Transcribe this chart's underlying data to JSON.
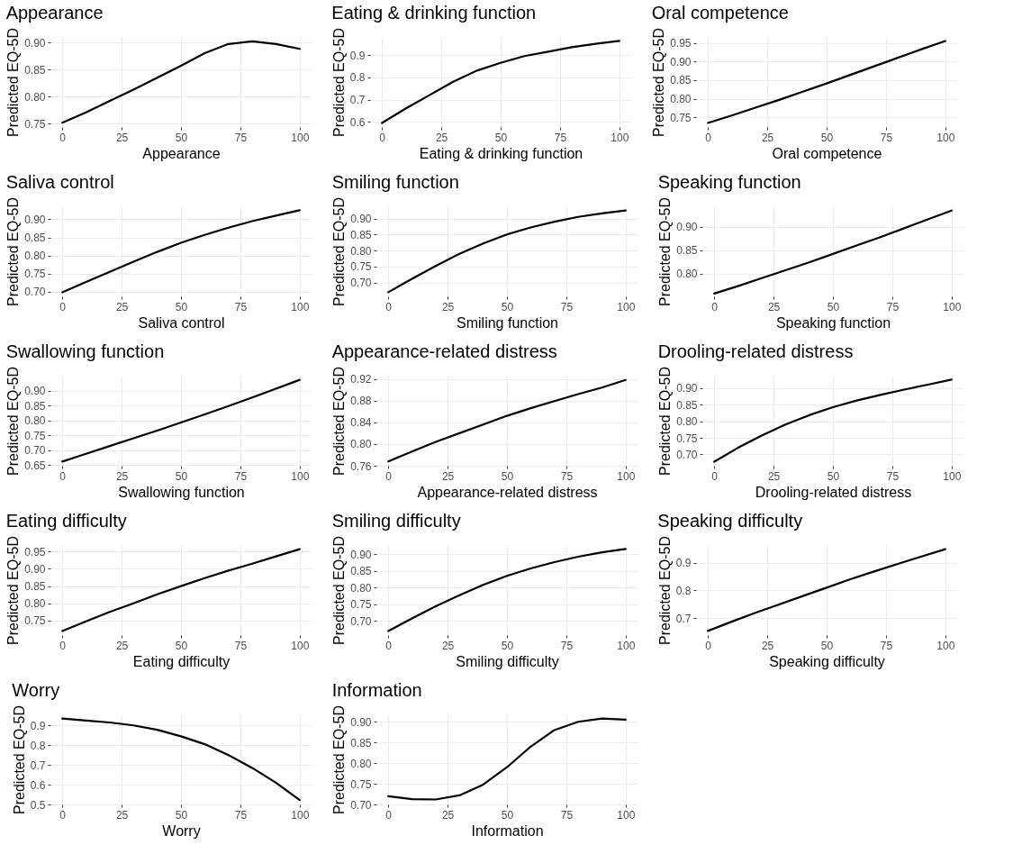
{
  "chart_data": [
    {
      "type": "line",
      "title": "Appearance",
      "xlabel": "Appearance",
      "ylabel": "Predicted EQ-5D",
      "x": [
        0,
        10,
        20,
        30,
        40,
        50,
        60,
        70,
        80,
        90,
        100
      ],
      "series": [
        {
          "color": "#000000",
          "values": [
            0.752,
            0.771,
            0.792,
            0.813,
            0.835,
            0.857,
            0.88,
            0.897,
            0.902,
            0.897,
            0.888
          ]
        }
      ],
      "xlim": [
        -5,
        105
      ],
      "xticks": [
        0,
        25,
        50,
        75,
        100
      ],
      "ylim": [
        0.744,
        0.91
      ],
      "yticks": [
        {
          "value": 0.75,
          "label": "0.75"
        },
        {
          "value": 0.8,
          "label": "0.80"
        },
        {
          "value": 0.85,
          "label": "0.85"
        },
        {
          "value": 0.9,
          "label": "0.90"
        }
      ],
      "grid": true,
      "legend": false
    },
    {
      "type": "line",
      "title": "Eating & drinking function",
      "xlabel": "Eating & drinking function",
      "ylabel": "Predicted EQ-5D",
      "x": [
        0,
        10,
        20,
        30,
        40,
        50,
        60,
        70,
        80,
        90,
        100
      ],
      "series": [
        {
          "color": "#000000",
          "values": [
            0.595,
            0.66,
            0.72,
            0.78,
            0.83,
            0.865,
            0.895,
            0.915,
            0.935,
            0.95,
            0.963
          ]
        }
      ],
      "xlim": [
        -5,
        105
      ],
      "xticks": [
        0,
        25,
        50,
        75,
        100
      ],
      "ylim": [
        0.577,
        0.981
      ],
      "yticks": [
        0.6,
        0.7,
        0.8,
        0.9
      ],
      "grid": true,
      "legend": false
    },
    {
      "type": "line",
      "title": "Oral competence",
      "xlabel": "Oral competence",
      "ylabel": "Predicted EQ-5D",
      "x": [
        0,
        10,
        20,
        30,
        40,
        50,
        60,
        70,
        80,
        90,
        100
      ],
      "series": [
        {
          "color": "#000000",
          "values": [
            0.735,
            0.755,
            0.776,
            0.797,
            0.819,
            0.841,
            0.864,
            0.887,
            0.91,
            0.933,
            0.955
          ]
        }
      ],
      "xlim": [
        -5,
        105
      ],
      "xticks": [
        0,
        25,
        50,
        75,
        100
      ],
      "ylim": [
        0.724,
        0.966
      ],
      "yticks": [
        {
          "value": 0.75,
          "label": "0.75"
        },
        {
          "value": 0.8,
          "label": "0.80"
        },
        {
          "value": 0.85,
          "label": "0.85"
        },
        {
          "value": 0.9,
          "label": "0.90"
        },
        {
          "value": 0.95,
          "label": "0.95"
        }
      ],
      "grid": true,
      "legend": false
    },
    {
      "type": "line",
      "title": "Saliva control",
      "xlabel": "Saliva control",
      "ylabel": "Predicted EQ-5D",
      "x": [
        0,
        10,
        20,
        30,
        40,
        50,
        60,
        70,
        80,
        90,
        100
      ],
      "series": [
        {
          "color": "#000000",
          "values": [
            0.698,
            0.727,
            0.755,
            0.783,
            0.81,
            0.835,
            0.857,
            0.877,
            0.895,
            0.91,
            0.925
          ]
        }
      ],
      "xlim": [
        -5,
        105
      ],
      "xticks": [
        0,
        25,
        50,
        75,
        100
      ],
      "ylim": [
        0.687,
        0.936
      ],
      "yticks": [
        {
          "value": 0.7,
          "label": "0.70"
        },
        {
          "value": 0.75,
          "label": "0.75"
        },
        {
          "value": 0.8,
          "label": "0.80"
        },
        {
          "value": 0.85,
          "label": "0.85"
        },
        {
          "value": 0.9,
          "label": "0.90"
        }
      ],
      "grid": true,
      "legend": false
    },
    {
      "type": "line",
      "title": "Smiling function",
      "xlabel": "Smiling function",
      "ylabel": "Predicted EQ-5D",
      "x": [
        0,
        10,
        20,
        30,
        40,
        50,
        60,
        70,
        80,
        90,
        100
      ],
      "series": [
        {
          "color": "#000000",
          "values": [
            0.67,
            0.712,
            0.752,
            0.79,
            0.822,
            0.85,
            0.872,
            0.89,
            0.905,
            0.916,
            0.925
          ]
        }
      ],
      "xlim": [
        -5,
        105
      ],
      "xticks": [
        0,
        25,
        50,
        75,
        100
      ],
      "ylim": [
        0.657,
        0.938
      ],
      "yticks": [
        {
          "value": 0.7,
          "label": "0.70"
        },
        {
          "value": 0.75,
          "label": "0.75"
        },
        {
          "value": 0.8,
          "label": "0.80"
        },
        {
          "value": 0.85,
          "label": "0.85"
        },
        {
          "value": 0.9,
          "label": "0.90"
        }
      ],
      "grid": true,
      "legend": false
    },
    {
      "type": "line",
      "title": "Speaking function",
      "xlabel": "Speaking function",
      "ylabel": "Predicted EQ-5D",
      "x": [
        0,
        10,
        20,
        30,
        40,
        50,
        60,
        70,
        80,
        90,
        100
      ],
      "series": [
        {
          "color": "#000000",
          "values": [
            0.757,
            0.773,
            0.79,
            0.807,
            0.824,
            0.842,
            0.86,
            0.878,
            0.897,
            0.916,
            0.935
          ]
        }
      ],
      "xlim": [
        -5,
        105
      ],
      "xticks": [
        0,
        25,
        50,
        75,
        100
      ],
      "ylim": [
        0.751,
        0.944
      ],
      "yticks": [
        {
          "value": 0.8,
          "label": "0.80"
        },
        {
          "value": 0.85,
          "label": "0.85"
        },
        {
          "value": 0.9,
          "label": "0.90"
        }
      ],
      "grid": true,
      "legend": false
    },
    {
      "type": "line",
      "title": "Swallowing function",
      "xlabel": "Swallowing function",
      "ylabel": "Predicted EQ-5D",
      "x": [
        0,
        10,
        20,
        30,
        40,
        50,
        60,
        70,
        80,
        90,
        100
      ],
      "series": [
        {
          "color": "#000000",
          "values": [
            0.662,
            0.688,
            0.714,
            0.74,
            0.766,
            0.793,
            0.82,
            0.848,
            0.877,
            0.906,
            0.936
          ]
        }
      ],
      "xlim": [
        -5,
        105
      ],
      "xticks": [
        0,
        25,
        50,
        75,
        100
      ],
      "ylim": [
        0.648,
        0.95
      ],
      "yticks": [
        {
          "value": 0.65,
          "label": "0.65"
        },
        {
          "value": 0.7,
          "label": "0.70"
        },
        {
          "value": 0.75,
          "label": "0.75"
        },
        {
          "value": 0.8,
          "label": "0.80"
        },
        {
          "value": 0.85,
          "label": "0.85"
        },
        {
          "value": 0.9,
          "label": "0.90"
        }
      ],
      "grid": true,
      "legend": false
    },
    {
      "type": "line",
      "title": "Appearance-related distress",
      "xlabel": "Appearance-related distress",
      "ylabel": "Predicted EQ-5D",
      "x": [
        0,
        10,
        20,
        30,
        40,
        50,
        60,
        70,
        80,
        90,
        100
      ],
      "series": [
        {
          "color": "#000000",
          "values": [
            0.768,
            0.786,
            0.804,
            0.82,
            0.836,
            0.852,
            0.866,
            0.879,
            0.892,
            0.904,
            0.918
          ]
        }
      ],
      "xlim": [
        -5,
        105
      ],
      "xticks": [
        0,
        25,
        50,
        75,
        100
      ],
      "ylim": [
        0.76,
        0.926
      ],
      "yticks": [
        0.76,
        {
          "value": 0.8,
          "label": "0.80"
        },
        0.84,
        0.88,
        0.92
      ],
      "grid": true,
      "legend": false
    },
    {
      "type": "line",
      "title": "Drooling-related distress",
      "xlabel": "Drooling-related distress",
      "ylabel": "Predicted EQ-5D",
      "x": [
        0,
        10,
        20,
        30,
        40,
        50,
        60,
        70,
        80,
        90,
        100
      ],
      "series": [
        {
          "color": "#000000",
          "values": [
            0.678,
            0.72,
            0.757,
            0.79,
            0.818,
            0.842,
            0.862,
            0.879,
            0.895,
            0.91,
            0.925
          ]
        }
      ],
      "xlim": [
        -5,
        105
      ],
      "xticks": [
        0,
        25,
        50,
        75,
        100
      ],
      "ylim": [
        0.666,
        0.937
      ],
      "yticks": [
        {
          "value": 0.7,
          "label": "0.70"
        },
        {
          "value": 0.75,
          "label": "0.75"
        },
        {
          "value": 0.8,
          "label": "0.80"
        },
        {
          "value": 0.85,
          "label": "0.85"
        },
        {
          "value": 0.9,
          "label": "0.90"
        }
      ],
      "grid": true,
      "legend": false
    },
    {
      "type": "line",
      "title": "Eating difficulty",
      "xlabel": "Eating difficulty",
      "ylabel": "Predicted EQ-5D",
      "x": [
        0,
        10,
        20,
        30,
        40,
        50,
        60,
        70,
        80,
        90,
        100
      ],
      "series": [
        {
          "color": "#000000",
          "values": [
            0.72,
            0.748,
            0.775,
            0.8,
            0.826,
            0.85,
            0.873,
            0.895,
            0.915,
            0.936,
            0.957
          ]
        }
      ],
      "xlim": [
        -5,
        105
      ],
      "xticks": [
        0,
        25,
        50,
        75,
        100
      ],
      "ylim": [
        0.708,
        0.969
      ],
      "yticks": [
        {
          "value": 0.75,
          "label": "0.75"
        },
        {
          "value": 0.8,
          "label": "0.80"
        },
        {
          "value": 0.85,
          "label": "0.85"
        },
        {
          "value": 0.9,
          "label": "0.90"
        },
        {
          "value": 0.95,
          "label": "0.95"
        }
      ],
      "grid": true,
      "legend": false
    },
    {
      "type": "line",
      "title": "Smiling difficulty",
      "xlabel": "Smiling difficulty",
      "ylabel": "Predicted EQ-5D",
      "x": [
        0,
        10,
        20,
        30,
        40,
        50,
        60,
        70,
        80,
        90,
        100
      ],
      "series": [
        {
          "color": "#000000",
          "values": [
            0.67,
            0.708,
            0.744,
            0.777,
            0.808,
            0.835,
            0.857,
            0.876,
            0.892,
            0.905,
            0.915
          ]
        }
      ],
      "xlim": [
        -5,
        105
      ],
      "xticks": [
        0,
        25,
        50,
        75,
        100
      ],
      "ylim": [
        0.658,
        0.927
      ],
      "yticks": [
        {
          "value": 0.7,
          "label": "0.70"
        },
        {
          "value": 0.75,
          "label": "0.75"
        },
        {
          "value": 0.8,
          "label": "0.80"
        },
        {
          "value": 0.85,
          "label": "0.85"
        },
        {
          "value": 0.9,
          "label": "0.90"
        }
      ],
      "grid": true,
      "legend": false
    },
    {
      "type": "line",
      "title": "Speaking difficulty",
      "xlabel": "Speaking difficulty",
      "ylabel": "Predicted EQ-5D",
      "x": [
        0,
        10,
        20,
        30,
        40,
        50,
        60,
        70,
        80,
        90,
        100
      ],
      "series": [
        {
          "color": "#000000",
          "values": [
            0.655,
            0.688,
            0.72,
            0.75,
            0.78,
            0.81,
            0.84,
            0.868,
            0.895,
            0.922,
            0.948
          ]
        }
      ],
      "xlim": [
        -5,
        105
      ],
      "xticks": [
        0,
        25,
        50,
        75,
        100
      ],
      "ylim": [
        0.64,
        0.963
      ],
      "yticks": [
        0.7,
        0.8,
        0.9
      ],
      "grid": true,
      "legend": false
    },
    {
      "type": "line",
      "title": "Worry",
      "xlabel": "Worry",
      "ylabel": "Predicted EQ-5D",
      "x": [
        0,
        10,
        20,
        30,
        40,
        50,
        60,
        70,
        80,
        90,
        100
      ],
      "series": [
        {
          "color": "#000000",
          "values": [
            0.935,
            0.925,
            0.915,
            0.9,
            0.878,
            0.845,
            0.805,
            0.75,
            0.685,
            0.61,
            0.522
          ]
        }
      ],
      "xlim": [
        -5,
        105
      ],
      "xticks": [
        0,
        25,
        50,
        75,
        100
      ],
      "ylim": [
        0.5,
        0.956
      ],
      "yticks": [
        0.5,
        0.6,
        0.7,
        0.8,
        0.9
      ],
      "grid": true,
      "legend": false
    },
    {
      "type": "line",
      "title": "Information",
      "xlabel": "Information",
      "ylabel": "Predicted EQ-5D",
      "x": [
        0,
        10,
        20,
        30,
        40,
        50,
        60,
        70,
        80,
        90,
        100
      ],
      "series": [
        {
          "color": "#000000",
          "values": [
            0.72,
            0.713,
            0.712,
            0.722,
            0.748,
            0.79,
            0.84,
            0.88,
            0.9,
            0.908,
            0.905
          ]
        }
      ],
      "xlim": [
        -5,
        105
      ],
      "xticks": [
        0,
        25,
        50,
        75,
        100
      ],
      "ylim": [
        0.7,
        0.918
      ],
      "yticks": [
        {
          "value": 0.7,
          "label": "0.70"
        },
        {
          "value": 0.75,
          "label": "0.75"
        },
        {
          "value": 0.8,
          "label": "0.80"
        },
        {
          "value": 0.85,
          "label": "0.85"
        },
        {
          "value": 0.9,
          "label": "0.90"
        }
      ],
      "grid": true,
      "legend": false
    }
  ]
}
